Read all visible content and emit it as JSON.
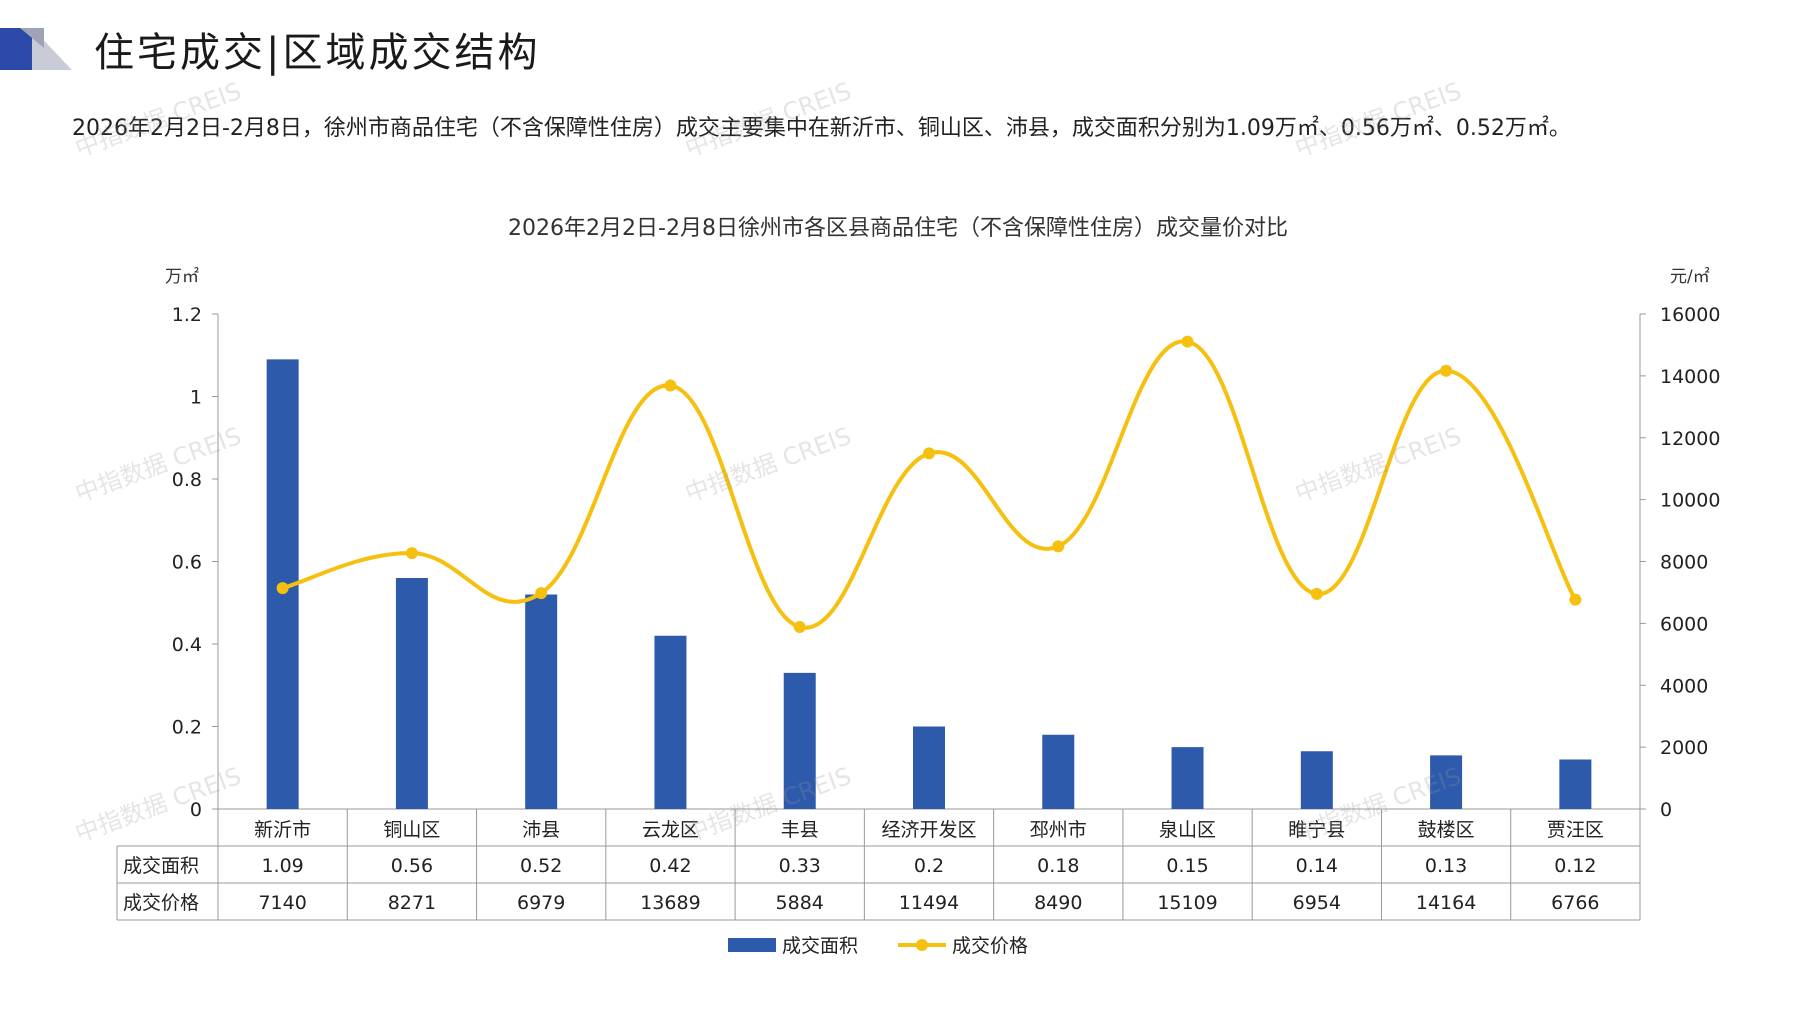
{
  "header": {
    "title": "住宅成交|区域成交结构",
    "summary": "2026年2月2日-2月8日，徐州市商品住宅（不含保障性住房）成交主要集中在新沂市、铜山区、沛县，成交面积分别为1.09万㎡、0.56万㎡、0.52万㎡。"
  },
  "watermark": "中指数据 CREIS",
  "colors": {
    "bar": "#2e5aac",
    "line": "#f5c010",
    "logo_dark": "#2b4aa8",
    "logo_light": "#c9ccd6"
  },
  "chart_data": {
    "type": "bar",
    "title": "2026年2月2日-2月8日徐州市各区县商品住宅（不含保障性住房）成交量价对比",
    "y_left_unit": "万㎡",
    "y_right_unit": "元/㎡",
    "y_left_range": [
      0,
      1.2
    ],
    "y_left_ticks": [
      "0",
      "0.2",
      "0.4",
      "0.6",
      "0.8",
      "1",
      "1.2"
    ],
    "y_right_range": [
      0,
      16000
    ],
    "y_right_ticks": [
      "0",
      "2000",
      "4000",
      "6000",
      "8000",
      "10000",
      "12000",
      "14000",
      "16000"
    ],
    "categories": [
      "新沂市",
      "铜山区",
      "沛县",
      "云龙区",
      "丰县",
      "经济开发区",
      "邳州市",
      "泉山区",
      "睢宁县",
      "鼓楼区",
      "贾汪区"
    ],
    "series": [
      {
        "name": "成交面积",
        "type": "bar",
        "axis": "left",
        "values": [
          1.09,
          0.56,
          0.52,
          0.42,
          0.33,
          0.2,
          0.18,
          0.15,
          0.14,
          0.13,
          0.12
        ]
      },
      {
        "name": "成交价格",
        "type": "line",
        "axis": "right",
        "values": [
          7140,
          8271,
          6979,
          13689,
          5884,
          11494,
          8490,
          15109,
          6954,
          14164,
          6766
        ]
      }
    ],
    "table_rows": [
      {
        "label": "成交面积",
        "values": [
          "1.09",
          "0.56",
          "0.52",
          "0.42",
          "0.33",
          "0.2",
          "0.18",
          "0.15",
          "0.14",
          "0.13",
          "0.12"
        ]
      },
      {
        "label": "成交价格",
        "values": [
          "7140",
          "8271",
          "6979",
          "13689",
          "5884",
          "11494",
          "8490",
          "15109",
          "6954",
          "14164",
          "6766"
        ]
      }
    ],
    "legend_position": "bottom"
  }
}
